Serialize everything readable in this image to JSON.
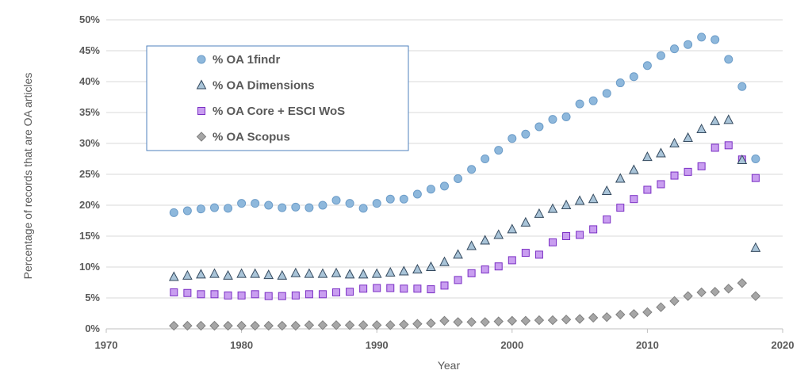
{
  "chart_data": {
    "type": "scatter",
    "title": "",
    "xlabel": "Year",
    "ylabel": "Percentage of records that are OA articles",
    "xlim": [
      1970,
      2020
    ],
    "ylim": [
      0,
      50
    ],
    "x_ticks": [
      "1970",
      "1980",
      "1990",
      "2000",
      "2010",
      "2020"
    ],
    "y_ticks": [
      "0%",
      "5%",
      "10%",
      "15%",
      "20%",
      "25%",
      "30%",
      "35%",
      "40%",
      "45%",
      "50%"
    ],
    "grid": "horizontal",
    "legend_position": "top-left",
    "series": [
      {
        "name": "% OA 1findr",
        "marker": "circle",
        "color": "#8EB8DC",
        "stroke": "#6C9CC8",
        "x": [
          1975,
          1976,
          1977,
          1978,
          1979,
          1980,
          1981,
          1982,
          1983,
          1984,
          1985,
          1986,
          1987,
          1988,
          1989,
          1990,
          1991,
          1992,
          1993,
          1994,
          1995,
          1996,
          1997,
          1998,
          1999,
          2000,
          2001,
          2002,
          2003,
          2004,
          2005,
          2006,
          2007,
          2008,
          2009,
          2010,
          2011,
          2012,
          2013,
          2014,
          2015,
          2016,
          2017,
          2018
        ],
        "values": [
          18.8,
          19.1,
          19.4,
          19.6,
          19.5,
          20.3,
          20.3,
          20.0,
          19.6,
          19.7,
          19.6,
          20.0,
          20.8,
          20.3,
          19.5,
          20.3,
          21.0,
          21.0,
          21.8,
          22.6,
          23.1,
          24.3,
          25.8,
          27.5,
          28.9,
          30.8,
          31.5,
          32.7,
          33.9,
          34.3,
          36.4,
          36.9,
          38.1,
          39.8,
          40.8,
          42.6,
          44.2,
          45.3,
          46.0,
          47.2,
          46.8,
          43.6,
          39.2,
          27.5
        ]
      },
      {
        "name": "% OA Dimensions",
        "marker": "triangle",
        "color": "#A9C4D8",
        "stroke": "#34495E",
        "x": [
          1975,
          1976,
          1977,
          1978,
          1979,
          1980,
          1981,
          1982,
          1983,
          1984,
          1985,
          1986,
          1987,
          1988,
          1989,
          1990,
          1991,
          1992,
          1993,
          1994,
          1995,
          1996,
          1997,
          1998,
          1999,
          2000,
          2001,
          2002,
          2003,
          2004,
          2005,
          2006,
          2007,
          2008,
          2009,
          2010,
          2011,
          2012,
          2013,
          2014,
          2015,
          2016,
          2017,
          2018
        ],
        "values": [
          8.4,
          8.6,
          8.8,
          8.9,
          8.6,
          8.9,
          8.9,
          8.7,
          8.6,
          9.0,
          8.9,
          8.9,
          9.0,
          8.8,
          8.8,
          8.9,
          9.1,
          9.3,
          9.6,
          10.0,
          10.8,
          12.0,
          13.4,
          14.3,
          15.2,
          16.1,
          17.2,
          18.6,
          19.4,
          20.0,
          20.7,
          21.0,
          22.3,
          24.3,
          25.7,
          27.8,
          28.4,
          30.0,
          30.9,
          32.3,
          33.6,
          33.8,
          27.3,
          13.1
        ]
      },
      {
        "name": "% OA Core + ESCI WoS",
        "marker": "square",
        "color": "#C99EF0",
        "stroke": "#7A2FC4",
        "x": [
          1975,
          1976,
          1977,
          1978,
          1979,
          1980,
          1981,
          1982,
          1983,
          1984,
          1985,
          1986,
          1987,
          1988,
          1989,
          1990,
          1991,
          1992,
          1993,
          1994,
          1995,
          1996,
          1997,
          1998,
          1999,
          2000,
          2001,
          2002,
          2003,
          2004,
          2005,
          2006,
          2007,
          2008,
          2009,
          2010,
          2011,
          2012,
          2013,
          2014,
          2015,
          2016,
          2017,
          2018
        ],
        "values": [
          5.9,
          5.8,
          5.6,
          5.6,
          5.4,
          5.4,
          5.6,
          5.3,
          5.3,
          5.4,
          5.6,
          5.6,
          5.9,
          6.0,
          6.5,
          6.6,
          6.6,
          6.5,
          6.5,
          6.4,
          7.0,
          7.9,
          9.0,
          9.6,
          10.1,
          11.1,
          12.3,
          12.0,
          14.0,
          15.0,
          15.2,
          16.1,
          17.7,
          19.6,
          21.0,
          22.5,
          23.4,
          24.8,
          25.4,
          26.3,
          29.3,
          29.7,
          27.4,
          24.4
        ]
      },
      {
        "name": "% OA Scopus",
        "marker": "diamond",
        "color": "#A6A6A6",
        "stroke": "#7F7F7F",
        "x": [
          1975,
          1976,
          1977,
          1978,
          1979,
          1980,
          1981,
          1982,
          1983,
          1984,
          1985,
          1986,
          1987,
          1988,
          1989,
          1990,
          1991,
          1992,
          1993,
          1994,
          1995,
          1996,
          1997,
          1998,
          1999,
          2000,
          2001,
          2002,
          2003,
          2004,
          2005,
          2006,
          2007,
          2008,
          2009,
          2010,
          2011,
          2012,
          2013,
          2014,
          2015,
          2016,
          2017,
          2018
        ],
        "values": [
          0.5,
          0.5,
          0.5,
          0.5,
          0.5,
          0.5,
          0.5,
          0.5,
          0.5,
          0.5,
          0.6,
          0.6,
          0.6,
          0.6,
          0.6,
          0.6,
          0.6,
          0.7,
          0.8,
          0.9,
          1.3,
          1.1,
          1.1,
          1.1,
          1.2,
          1.3,
          1.3,
          1.4,
          1.4,
          1.5,
          1.6,
          1.8,
          1.9,
          2.3,
          2.4,
          2.7,
          3.5,
          4.5,
          5.3,
          5.9,
          6.0,
          6.5,
          7.4,
          5.3
        ]
      }
    ]
  }
}
